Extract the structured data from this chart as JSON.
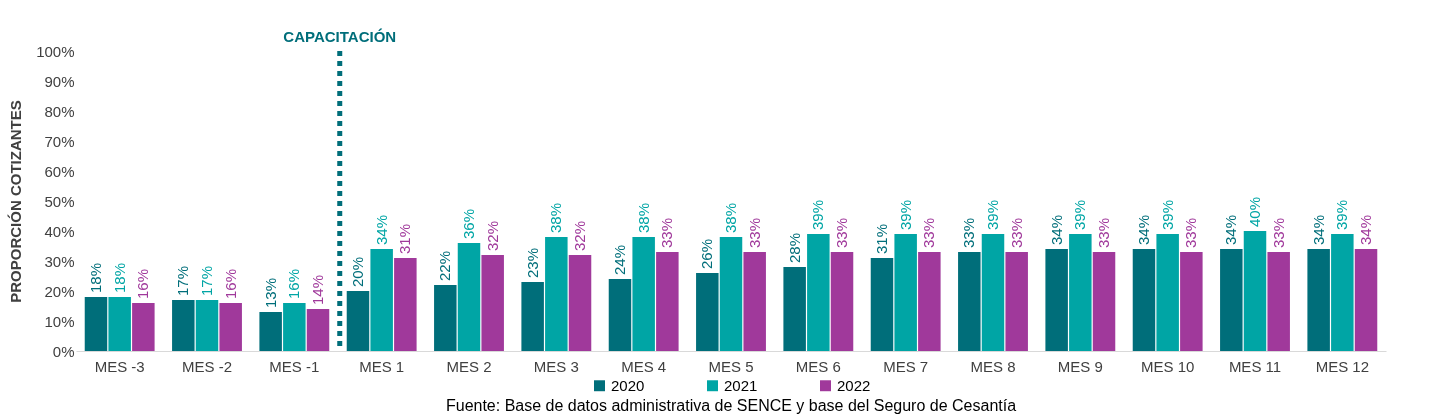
{
  "chart_data": {
    "type": "bar",
    "ylabel": "PROPORCIÓN COTIZANTES",
    "categories": [
      "MES -3",
      "MES -2",
      "MES -1",
      "MES 1",
      "MES 2",
      "MES 3",
      "MES 4",
      "MES 5",
      "MES 6",
      "MES 7",
      "MES 8",
      "MES 9",
      "MES 10",
      "MES 11",
      "MES 12"
    ],
    "series": [
      {
        "name": "2020",
        "color": "#006e7a",
        "values": [
          18,
          17,
          13,
          20,
          22,
          23,
          24,
          26,
          28,
          31,
          33,
          34,
          34,
          34,
          34
        ],
        "value_labels": [
          "18%",
          "17%",
          "13%",
          "20%",
          "22%",
          "23%",
          "24%",
          "26%",
          "28%",
          "31%",
          "33%",
          "34%",
          "34%",
          "34%",
          "34%"
        ]
      },
      {
        "name": "2021",
        "color": "#00a5a5",
        "values": [
          18,
          17,
          16,
          34,
          36,
          38,
          38,
          38,
          39,
          39,
          39,
          39,
          39,
          40,
          39
        ],
        "value_labels": [
          "18%",
          "17%",
          "16%",
          "34%",
          "36%",
          "38%",
          "38%",
          "38%",
          "39%",
          "39%",
          "39%",
          "39%",
          "39%",
          "40%",
          "39%"
        ]
      },
      {
        "name": "2022",
        "color": "#a0399b",
        "values": [
          16,
          16,
          14,
          31,
          32,
          32,
          33,
          33,
          33,
          33,
          33,
          33,
          33,
          33,
          34
        ],
        "value_labels": [
          "16%",
          "16%",
          "14%",
          "31%",
          "32%",
          "32%",
          "33%",
          "33%",
          "33%",
          "33%",
          "33%",
          "33%",
          "33%",
          "33%",
          "34%"
        ]
      }
    ],
    "ylim": [
      0,
      100
    ],
    "yticks": [
      {
        "value": 0,
        "label": "0%"
      },
      {
        "value": 10,
        "label": "10%"
      },
      {
        "value": 20,
        "label": "20%"
      },
      {
        "value": 30,
        "label": "30%"
      },
      {
        "value": 40,
        "label": "40%"
      },
      {
        "value": 50,
        "label": "50%"
      },
      {
        "value": 60,
        "label": "60%"
      },
      {
        "value": 70,
        "label": "70%"
      },
      {
        "value": 80,
        "label": "80%"
      },
      {
        "value": 90,
        "label": "90%"
      },
      {
        "value": 100,
        "label": "100%"
      }
    ],
    "ref_lines": [
      {
        "axis": "x",
        "value": "MES 1",
        "label": "CAPACITACIÓN",
        "color": "#006e7a",
        "line_style": "dotted"
      }
    ],
    "grid": false,
    "legend": "bottom",
    "annotations": [
      "Fuente: Base de datos administrativa de SENCE y base del Seguro de Cesantía"
    ]
  }
}
